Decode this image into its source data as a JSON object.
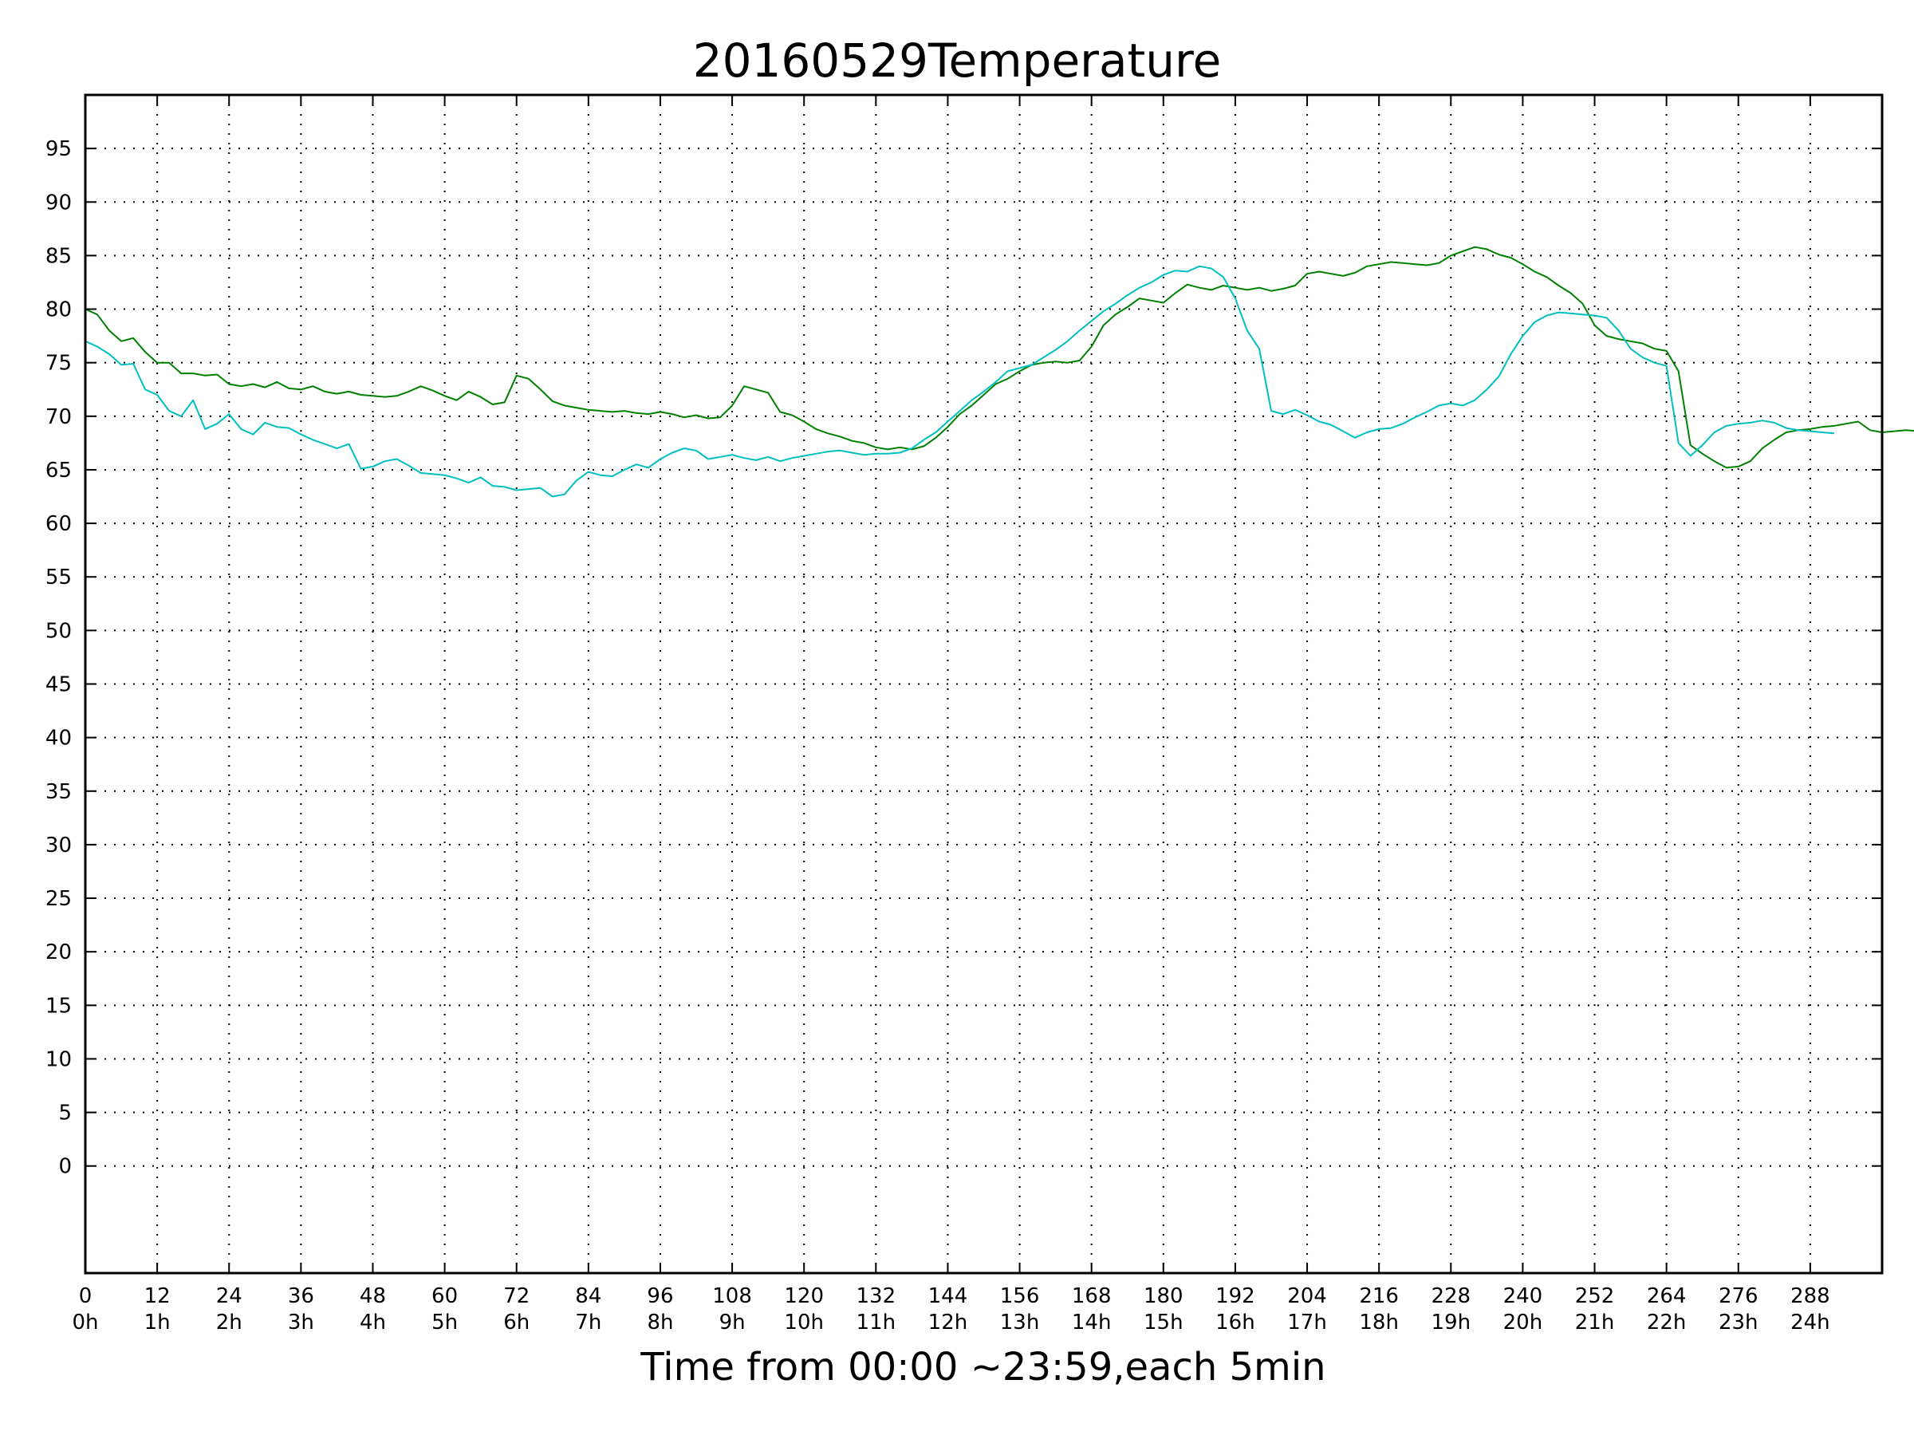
{
  "chart_data": {
    "type": "line",
    "title": "20160529Temperature",
    "xlabel": "Time from 00:00 ~23:59,each 5min",
    "ylabel": "",
    "xlim": [
      0,
      300
    ],
    "ylim": [
      -10,
      100
    ],
    "grid": true,
    "grid_style": "dotted",
    "x_ticks": [
      0,
      12,
      24,
      36,
      48,
      60,
      72,
      84,
      96,
      108,
      120,
      132,
      144,
      156,
      168,
      180,
      192,
      204,
      216,
      228,
      240,
      252,
      264,
      276,
      288
    ],
    "x_tick_labels": [
      "0",
      "12",
      "24",
      "36",
      "48",
      "60",
      "72",
      "84",
      "96",
      "108",
      "120",
      "132",
      "144",
      "156",
      "168",
      "180",
      "192",
      "204",
      "216",
      "228",
      "240",
      "252",
      "264",
      "276",
      "288"
    ],
    "x_tick_sublabels": [
      "0h",
      "1h",
      "2h",
      "3h",
      "4h",
      "5h",
      "6h",
      "7h",
      "8h",
      "9h",
      "10h",
      "11h",
      "12h",
      "13h",
      "14h",
      "15h",
      "16h",
      "17h",
      "18h",
      "19h",
      "20h",
      "21h",
      "22h",
      "23h",
      "24h"
    ],
    "y_ticks": [
      0,
      5,
      10,
      15,
      20,
      25,
      30,
      35,
      40,
      45,
      50,
      55,
      60,
      65,
      70,
      75,
      80,
      85,
      90,
      95
    ],
    "y_tick_labels": [
      "0",
      "5",
      "10",
      "15",
      "20",
      "25",
      "30",
      "35",
      "40",
      "45",
      "50",
      "55",
      "60",
      "65",
      "70",
      "75",
      "80",
      "85",
      "90",
      "95"
    ],
    "series": [
      {
        "color": "#008000",
        "points": [
          [
            0,
            80
          ],
          [
            2,
            79.5
          ],
          [
            4,
            78
          ],
          [
            6,
            77
          ],
          [
            8,
            77.3
          ],
          [
            10,
            76
          ],
          [
            12,
            75
          ],
          [
            14,
            75
          ],
          [
            16,
            74
          ],
          [
            18,
            74
          ],
          [
            20,
            73.8
          ],
          [
            22,
            73.9
          ],
          [
            24,
            73
          ],
          [
            26,
            72.8
          ],
          [
            28,
            73
          ],
          [
            30,
            72.7
          ],
          [
            32,
            73.2
          ],
          [
            34,
            72.6
          ],
          [
            36,
            72.5
          ],
          [
            38,
            72.8
          ],
          [
            40,
            72.3
          ],
          [
            42,
            72.1
          ],
          [
            44,
            72.3
          ],
          [
            46,
            72
          ],
          [
            48,
            71.9
          ],
          [
            50,
            71.8
          ],
          [
            52,
            71.9
          ],
          [
            54,
            72.3
          ],
          [
            56,
            72.8
          ],
          [
            58,
            72.4
          ],
          [
            60,
            71.9
          ],
          [
            62,
            71.5
          ],
          [
            64,
            72.3
          ],
          [
            66,
            71.8
          ],
          [
            68,
            71.1
          ],
          [
            70,
            71.3
          ],
          [
            72,
            73.8
          ],
          [
            74,
            73.5
          ],
          [
            76,
            72.5
          ],
          [
            78,
            71.4
          ],
          [
            80,
            71
          ],
          [
            82,
            70.8
          ],
          [
            84,
            70.6
          ],
          [
            86,
            70.5
          ],
          [
            88,
            70.4
          ],
          [
            90,
            70.5
          ],
          [
            92,
            70.3
          ],
          [
            94,
            70.2
          ],
          [
            96,
            70.4
          ],
          [
            98,
            70.2
          ],
          [
            100,
            69.9
          ],
          [
            102,
            70.1
          ],
          [
            104,
            69.8
          ],
          [
            106,
            69.9
          ],
          [
            108,
            71
          ],
          [
            110,
            72.8
          ],
          [
            112,
            72.5
          ],
          [
            114,
            72.2
          ],
          [
            116,
            70.4
          ],
          [
            118,
            70.1
          ],
          [
            120,
            69.5
          ],
          [
            122,
            68.8
          ],
          [
            124,
            68.4
          ],
          [
            126,
            68.1
          ],
          [
            128,
            67.7
          ],
          [
            130,
            67.5
          ],
          [
            132,
            67.1
          ],
          [
            134,
            66.9
          ],
          [
            136,
            67.1
          ],
          [
            138,
            66.9
          ],
          [
            140,
            67.2
          ],
          [
            142,
            68
          ],
          [
            144,
            69
          ],
          [
            146,
            70.2
          ],
          [
            148,
            71
          ],
          [
            150,
            72
          ],
          [
            152,
            73
          ],
          [
            154,
            73.5
          ],
          [
            156,
            74.2
          ],
          [
            158,
            74.8
          ],
          [
            160,
            75
          ],
          [
            162,
            75.1
          ],
          [
            164,
            75
          ],
          [
            166,
            75.2
          ],
          [
            168,
            76.5
          ],
          [
            170,
            78.5
          ],
          [
            172,
            79.5
          ],
          [
            174,
            80.2
          ],
          [
            176,
            81
          ],
          [
            178,
            80.8
          ],
          [
            180,
            80.6
          ],
          [
            182,
            81.5
          ],
          [
            184,
            82.3
          ],
          [
            186,
            82
          ],
          [
            188,
            81.8
          ],
          [
            190,
            82.2
          ],
          [
            192,
            82
          ],
          [
            194,
            81.8
          ],
          [
            196,
            82
          ],
          [
            198,
            81.7
          ],
          [
            200,
            81.9
          ],
          [
            202,
            82.2
          ],
          [
            204,
            83.3
          ],
          [
            206,
            83.5
          ],
          [
            208,
            83.3
          ],
          [
            210,
            83.1
          ],
          [
            212,
            83.4
          ],
          [
            214,
            84
          ],
          [
            216,
            84.2
          ],
          [
            218,
            84.4
          ],
          [
            220,
            84.3
          ],
          [
            222,
            84.2
          ],
          [
            224,
            84.1
          ],
          [
            226,
            84.3
          ],
          [
            228,
            85
          ],
          [
            230,
            85.4
          ],
          [
            232,
            85.8
          ],
          [
            234,
            85.6
          ],
          [
            236,
            85.1
          ],
          [
            238,
            84.8
          ],
          [
            240,
            84.2
          ],
          [
            242,
            83.5
          ],
          [
            244,
            83
          ],
          [
            246,
            82.2
          ],
          [
            248,
            81.5
          ],
          [
            250,
            80.5
          ],
          [
            252,
            78.5
          ],
          [
            254,
            77.5
          ],
          [
            256,
            77.2
          ],
          [
            258,
            77
          ],
          [
            260,
            76.8
          ],
          [
            262,
            76.3
          ],
          [
            264,
            76.1
          ],
          [
            266,
            74.2
          ],
          [
            268,
            67.3
          ],
          [
            270,
            66.5
          ],
          [
            272,
            65.8
          ],
          [
            274,
            65.2
          ],
          [
            276,
            65.3
          ],
          [
            278,
            65.8
          ],
          [
            280,
            67
          ],
          [
            282,
            67.8
          ],
          [
            284,
            68.5
          ],
          [
            286,
            68.7
          ],
          [
            288,
            68.8
          ],
          [
            290,
            69
          ],
          [
            292,
            69.1
          ],
          [
            294,
            69.3
          ],
          [
            296,
            69.5
          ],
          [
            298,
            68.7
          ],
          [
            300,
            68.5
          ],
          [
            302,
            68.6
          ],
          [
            304,
            68.7
          ],
          [
            306,
            68.6
          ],
          [
            308,
            69
          ]
        ]
      },
      {
        "color": "#00bfbf",
        "points": [
          [
            0,
            77
          ],
          [
            2,
            76.5
          ],
          [
            4,
            75.8
          ],
          [
            6,
            74.8
          ],
          [
            8,
            74.9
          ],
          [
            10,
            72.5
          ],
          [
            12,
            72
          ],
          [
            14,
            70.5
          ],
          [
            16,
            70
          ],
          [
            18,
            71.5
          ],
          [
            20,
            68.8
          ],
          [
            22,
            69.3
          ],
          [
            24,
            70.2
          ],
          [
            26,
            68.8
          ],
          [
            28,
            68.3
          ],
          [
            30,
            69.4
          ],
          [
            32,
            69
          ],
          [
            34,
            68.9
          ],
          [
            36,
            68.3
          ],
          [
            38,
            67.8
          ],
          [
            40,
            67.4
          ],
          [
            42,
            67
          ],
          [
            44,
            67.4
          ],
          [
            46,
            65.1
          ],
          [
            48,
            65.3
          ],
          [
            50,
            65.8
          ],
          [
            52,
            66
          ],
          [
            54,
            65.4
          ],
          [
            56,
            64.7
          ],
          [
            58,
            64.6
          ],
          [
            60,
            64.5
          ],
          [
            62,
            64.2
          ],
          [
            64,
            63.8
          ],
          [
            66,
            64.3
          ],
          [
            68,
            63.5
          ],
          [
            70,
            63.4
          ],
          [
            72,
            63.1
          ],
          [
            74,
            63.2
          ],
          [
            76,
            63.3
          ],
          [
            78,
            62.5
          ],
          [
            80,
            62.7
          ],
          [
            82,
            64
          ],
          [
            84,
            64.8
          ],
          [
            86,
            64.5
          ],
          [
            88,
            64.4
          ],
          [
            90,
            65
          ],
          [
            92,
            65.5
          ],
          [
            94,
            65.2
          ],
          [
            96,
            66
          ],
          [
            98,
            66.6
          ],
          [
            100,
            67
          ],
          [
            102,
            66.8
          ],
          [
            104,
            66
          ],
          [
            106,
            66.2
          ],
          [
            108,
            66.4
          ],
          [
            110,
            66.1
          ],
          [
            112,
            65.9
          ],
          [
            114,
            66.2
          ],
          [
            116,
            65.8
          ],
          [
            118,
            66.1
          ],
          [
            120,
            66.3
          ],
          [
            122,
            66.5
          ],
          [
            124,
            66.7
          ],
          [
            126,
            66.8
          ],
          [
            128,
            66.6
          ],
          [
            130,
            66.4
          ],
          [
            132,
            66.5
          ],
          [
            134,
            66.5
          ],
          [
            136,
            66.6
          ],
          [
            138,
            67
          ],
          [
            140,
            67.8
          ],
          [
            142,
            68.5
          ],
          [
            144,
            69.5
          ],
          [
            146,
            70.5
          ],
          [
            148,
            71.5
          ],
          [
            150,
            72.3
          ],
          [
            152,
            73.2
          ],
          [
            154,
            74.2
          ],
          [
            156,
            74.5
          ],
          [
            158,
            74.8
          ],
          [
            160,
            75.5
          ],
          [
            162,
            76.2
          ],
          [
            164,
            77
          ],
          [
            166,
            78
          ],
          [
            168,
            78.9
          ],
          [
            170,
            79.8
          ],
          [
            172,
            80.5
          ],
          [
            174,
            81.3
          ],
          [
            176,
            82
          ],
          [
            178,
            82.5
          ],
          [
            180,
            83.2
          ],
          [
            182,
            83.6
          ],
          [
            184,
            83.5
          ],
          [
            186,
            84
          ],
          [
            188,
            83.8
          ],
          [
            190,
            83
          ],
          [
            192,
            81
          ],
          [
            194,
            78
          ],
          [
            196,
            76.3
          ],
          [
            198,
            70.5
          ],
          [
            200,
            70.2
          ],
          [
            202,
            70.6
          ],
          [
            204,
            70.1
          ],
          [
            206,
            69.5
          ],
          [
            208,
            69.2
          ],
          [
            210,
            68.6
          ],
          [
            212,
            68
          ],
          [
            214,
            68.5
          ],
          [
            216,
            68.8
          ],
          [
            218,
            68.9
          ],
          [
            220,
            69.3
          ],
          [
            222,
            69.9
          ],
          [
            224,
            70.4
          ],
          [
            226,
            71
          ],
          [
            228,
            71.2
          ],
          [
            230,
            71
          ],
          [
            232,
            71.5
          ],
          [
            234,
            72.5
          ],
          [
            236,
            73.7
          ],
          [
            238,
            75.8
          ],
          [
            240,
            77.5
          ],
          [
            242,
            78.8
          ],
          [
            244,
            79.4
          ],
          [
            246,
            79.7
          ],
          [
            248,
            79.6
          ],
          [
            250,
            79.5
          ],
          [
            252,
            79.4
          ],
          [
            254,
            79.2
          ],
          [
            256,
            78
          ],
          [
            258,
            76.3
          ],
          [
            260,
            75.5
          ],
          [
            262,
            75
          ],
          [
            264,
            74.7
          ],
          [
            266,
            67.5
          ],
          [
            268,
            66.3
          ],
          [
            270,
            67.3
          ],
          [
            272,
            68.5
          ],
          [
            274,
            69.1
          ],
          [
            276,
            69.3
          ],
          [
            278,
            69.4
          ],
          [
            280,
            69.6
          ],
          [
            282,
            69.4
          ],
          [
            284,
            68.9
          ],
          [
            286,
            68.7
          ],
          [
            288,
            68.6
          ],
          [
            290,
            68.5
          ],
          [
            292,
            68.4
          ]
        ]
      }
    ]
  }
}
